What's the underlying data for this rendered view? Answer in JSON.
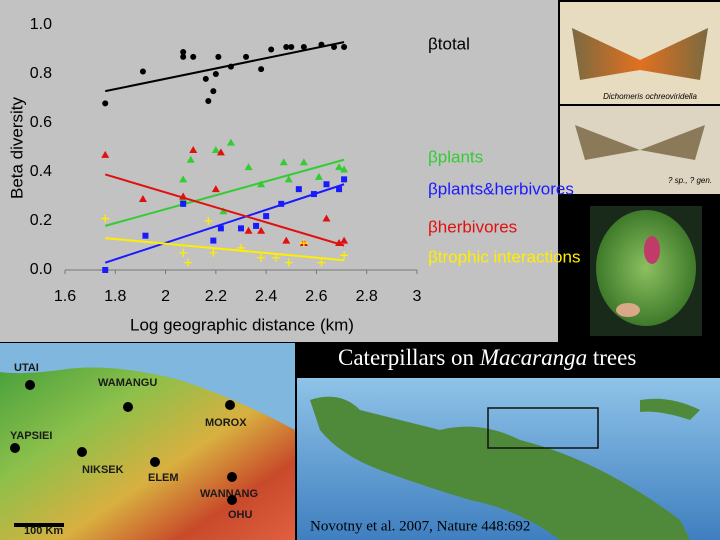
{
  "chart_data": {
    "type": "scatter",
    "ylabel": "Beta diversity",
    "xlabel": "Log geographic distance (km)",
    "xlim": [
      1.6,
      3
    ],
    "ylim": [
      0,
      1
    ],
    "xticks": [
      1.6,
      1.8,
      2,
      2.2,
      2.4,
      2.6,
      2.8,
      3
    ],
    "yticks": [
      {
        "value": 0,
        "label": "0.0"
      },
      0.2,
      0.4,
      0.6,
      0.8,
      {
        "value": 1,
        "label": "1.0"
      }
    ],
    "grid": false,
    "series": [
      {
        "name": "βtotal",
        "color": "#000000",
        "marker": "circle",
        "x": [
          1.76,
          1.91,
          2.07,
          2.07,
          2.11,
          2.16,
          2.17,
          2.19,
          2.2,
          2.21,
          2.26,
          2.32,
          2.38,
          2.42,
          2.48,
          2.5,
          2.55,
          2.62,
          2.67,
          2.71
        ],
        "values": [
          0.68,
          0.81,
          0.89,
          0.87,
          0.87,
          0.78,
          0.69,
          0.73,
          0.8,
          0.87,
          0.83,
          0.87,
          0.82,
          0.9,
          0.91,
          0.91,
          0.91,
          0.92,
          0.91,
          0.91
        ],
        "trend": {
          "x": [
            1.76,
            2.71
          ],
          "y": [
            0.73,
            0.93
          ]
        }
      },
      {
        "name": "βplants",
        "color": "#33cc33",
        "marker": "triangle",
        "x": [
          2.1,
          2.07,
          2.2,
          2.26,
          2.33,
          2.38,
          2.47,
          2.49,
          2.55,
          2.61,
          2.69,
          2.71,
          2.23,
          2.07
        ],
        "values": [
          0.45,
          0.37,
          0.49,
          0.52,
          0.42,
          0.35,
          0.44,
          0.37,
          0.44,
          0.38,
          0.42,
          0.41,
          0.24,
          0.29
        ],
        "trend": {
          "x": [
            1.76,
            2.71
          ],
          "y": [
            0.18,
            0.45
          ]
        }
      },
      {
        "name": "βplants&herbivores",
        "color": "#1a1aff",
        "marker": "square",
        "x": [
          1.76,
          1.92,
          2.07,
          2.19,
          2.22,
          2.3,
          2.36,
          2.4,
          2.46,
          2.53,
          2.59,
          2.64,
          2.69,
          2.71
        ],
        "values": [
          0,
          0.14,
          0.27,
          0.12,
          0.17,
          0.17,
          0.18,
          0.22,
          0.27,
          0.33,
          0.31,
          0.35,
          0.33,
          0.37
        ],
        "trend": {
          "x": [
            1.76,
            2.71
          ],
          "y": [
            0.03,
            0.35
          ]
        }
      },
      {
        "name": "βherbivores",
        "color": "#e01010",
        "marker": "triangle",
        "x": [
          1.76,
          1.91,
          2.07,
          2.11,
          2.2,
          2.22,
          2.33,
          2.38,
          2.48,
          2.55,
          2.64,
          2.69,
          2.71
        ],
        "values": [
          0.47,
          0.29,
          0.3,
          0.49,
          0.33,
          0.48,
          0.16,
          0.16,
          0.12,
          0.11,
          0.21,
          0.11,
          0.12
        ],
        "trend": {
          "x": [
            1.76,
            2.71
          ],
          "y": [
            0.39,
            0.1
          ]
        }
      },
      {
        "name": "βtrophic interactions",
        "color": "#ffee00",
        "marker": "plus",
        "x": [
          1.76,
          2.07,
          2.09,
          2.17,
          2.19,
          2.3,
          2.38,
          2.44,
          2.49,
          2.55,
          2.62,
          2.71
        ],
        "values": [
          0.21,
          0.07,
          0.03,
          0.2,
          0.07,
          0.09,
          0.05,
          0.05,
          0.03,
          0.11,
          0.03,
          0.06
        ],
        "trend": {
          "x": [
            1.76,
            2.71
          ],
          "y": [
            0.13,
            0.04
          ]
        }
      }
    ]
  },
  "caption": {
    "before": "Caterpillars on",
    "species": "Macaranga",
    "after": "trees"
  },
  "citation": "Novotny et al. 2007, Nature 448:692",
  "photos": {
    "moth_name": "Dichomeris ochreoviridella",
    "moth_unknown": "? sp., ? gen."
  },
  "map": {
    "sites": [
      "UTAI",
      "WAMANGU",
      "MOROX",
      "YAPSIEI",
      "NIKSEK",
      "ELEM",
      "WANNANG",
      "OHU"
    ],
    "scale": "100 Km"
  }
}
